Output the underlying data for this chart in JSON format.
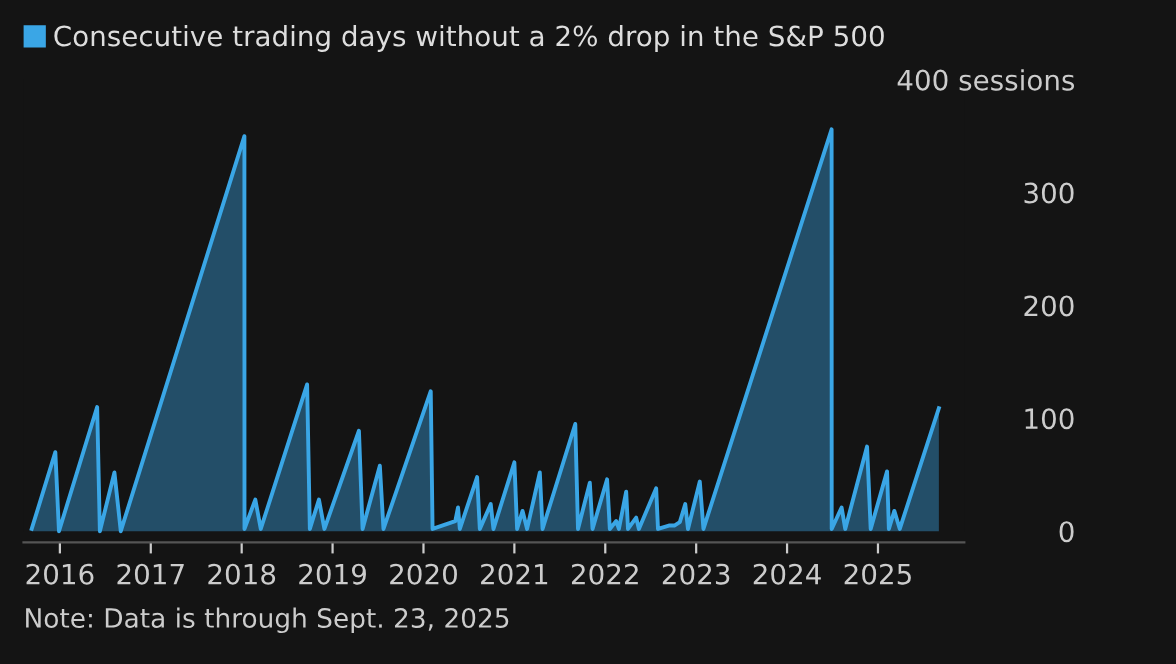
{
  "chart_data": {
    "type": "area",
    "x": [
      2015.69,
      2015.95,
      2015.99,
      2016.41,
      2016.44,
      2016.6,
      2016.67,
      2018.03,
      2018.031,
      2018.15,
      2018.21,
      2018.72,
      2018.75,
      2018.85,
      2018.91,
      2019.29,
      2019.33,
      2019.52,
      2019.56,
      2020.08,
      2020.1,
      2020.35,
      2020.38,
      2020.4,
      2020.59,
      2020.62,
      2020.74,
      2020.77,
      2021.0,
      2021.03,
      2021.09,
      2021.14,
      2021.28,
      2021.31,
      2021.67,
      2021.7,
      2021.83,
      2021.86,
      2022.02,
      2022.05,
      2022.12,
      2022.15,
      2022.23,
      2022.25,
      2022.34,
      2022.37,
      2022.56,
      2022.58,
      2022.7,
      2022.76,
      2022.82,
      2022.88,
      2022.91,
      2023.04,
      2023.08,
      2024.49,
      2024.491,
      2024.6,
      2024.64,
      2024.88,
      2024.92,
      2025.1,
      2025.12,
      2025.18,
      2025.24,
      2025.67
    ],
    "series": [
      {
        "name": "Consecutive trading days without a 2% drop in the S&P 500",
        "color": "#3aa6e6",
        "values": [
          2,
          70,
          0,
          110,
          0,
          52,
          0,
          350,
          2,
          28,
          2,
          130,
          2,
          28,
          2,
          89,
          2,
          58,
          2,
          124,
          2,
          9,
          21,
          2,
          48,
          2,
          24,
          2,
          61,
          2,
          18,
          2,
          52,
          2,
          95,
          2,
          43,
          2,
          46,
          2,
          9,
          2,
          35,
          2,
          12,
          2,
          38,
          2,
          5,
          5,
          8,
          24,
          2,
          44,
          2,
          356,
          2,
          21,
          2,
          75,
          2,
          53,
          2,
          18,
          2,
          109
        ]
      }
    ],
    "xlim": [
      2015.6,
      2025.95
    ],
    "ylim": [
      0,
      400
    ],
    "xticks": [
      2016,
      2017,
      2018,
      2019,
      2020,
      2021,
      2022,
      2023,
      2024,
      2025
    ],
    "yticks": [
      0,
      100,
      200,
      300,
      {
        "value": 400,
        "label": "400 sessions"
      }
    ],
    "grid": false,
    "legend": "top left",
    "annotations": [
      "Note: Data is through Sept. 23, 2025"
    ]
  }
}
